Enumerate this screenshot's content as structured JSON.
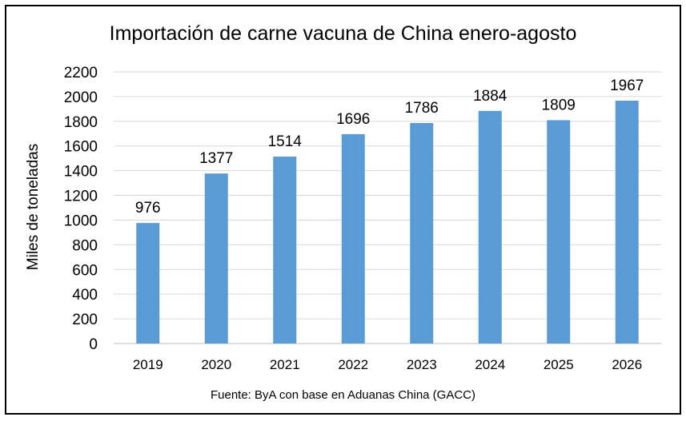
{
  "chart_data": {
    "type": "bar",
    "title": "Importación de carne vacuna de China enero-agosto",
    "ylabel": "Miles de toneladas",
    "xlabel": "",
    "categories": [
      "2019",
      "2020",
      "2021",
      "2022",
      "2023",
      "2024",
      "2025",
      "2026"
    ],
    "values": [
      976,
      1377,
      1514,
      1696,
      1786,
      1884,
      1809,
      1967
    ],
    "data_labels": [
      "976",
      "1377",
      "1514",
      "1696",
      "1786",
      "1884",
      "1809",
      "1967"
    ],
    "ylim": [
      0,
      2200
    ],
    "yticks": [
      "0",
      "200",
      "400",
      "600",
      "800",
      "1000",
      "1200",
      "1400",
      "1600",
      "1800",
      "2000",
      "2200"
    ],
    "grid": true,
    "legend": "none",
    "source": "Fuente: ByA con base en Aduanas China (GACC)",
    "colors": {
      "bar": "#5B9BD5",
      "grid": "#D9D9D9",
      "text": "#000000"
    }
  }
}
